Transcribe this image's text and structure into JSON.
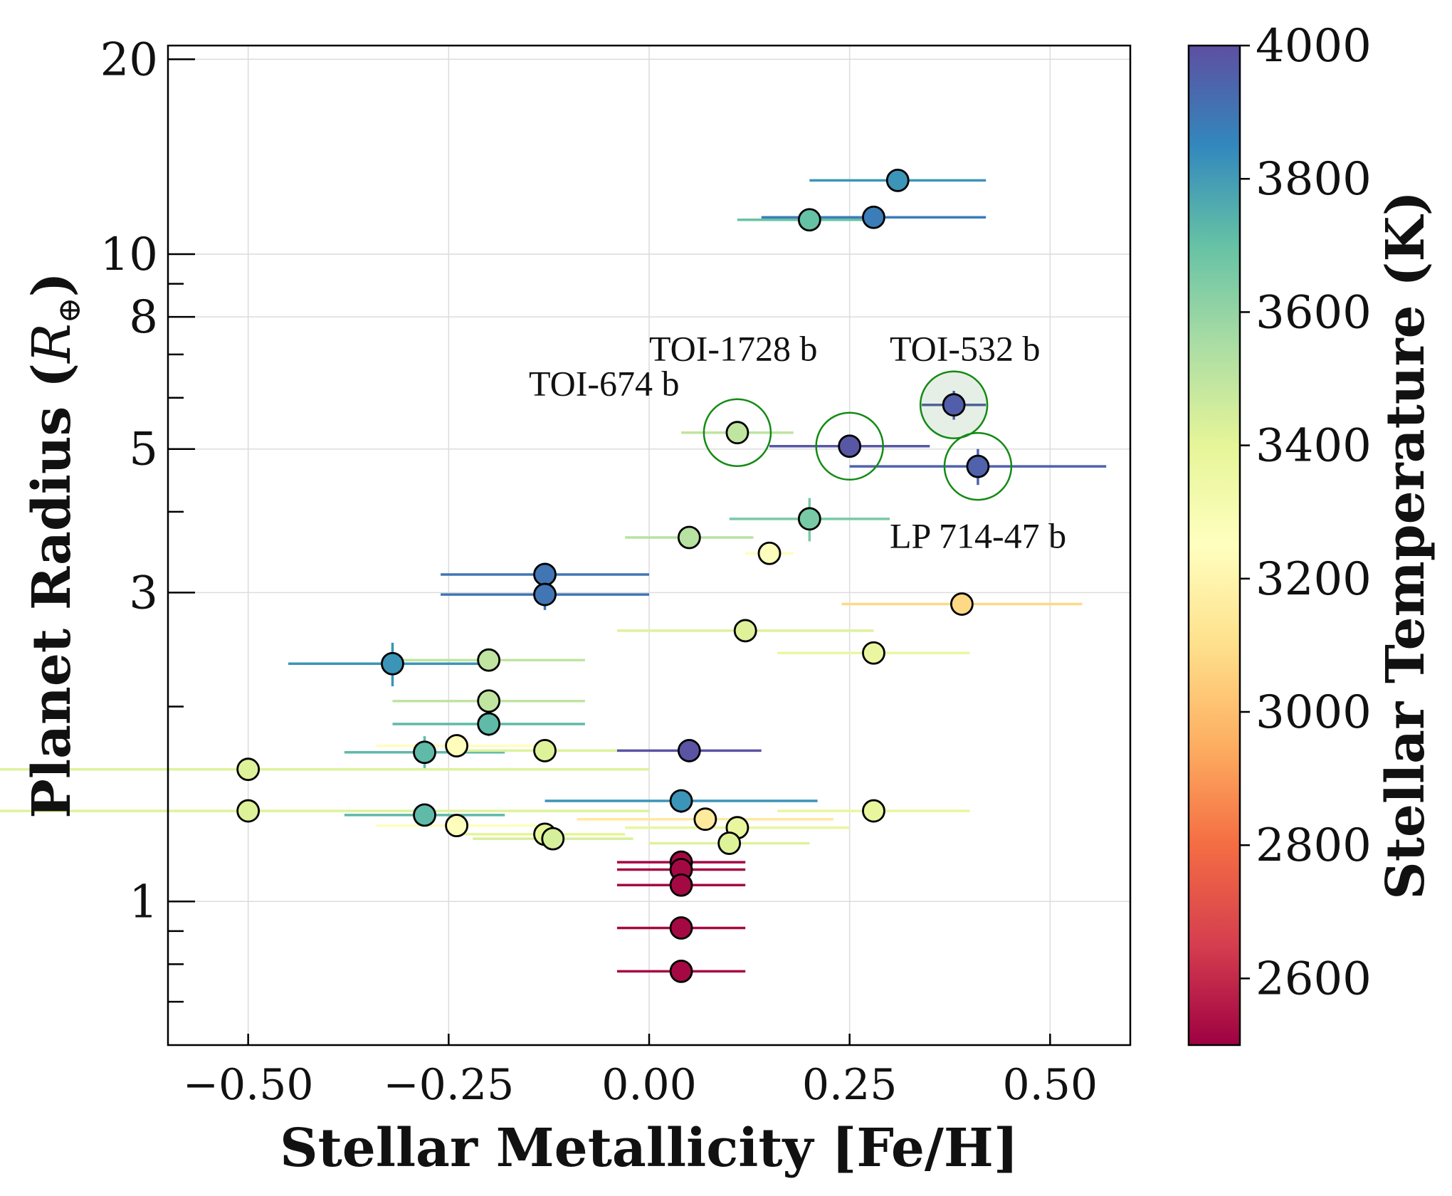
{
  "chart_data": {
    "type": "scatter",
    "title": "",
    "xlabel": "Stellar Metallicity [Fe/H]",
    "ylabel": "Planet Radius (R⊕)",
    "xlim": [
      -0.6,
      0.6
    ],
    "ylim": [
      0.6,
      21
    ],
    "yscale": "log",
    "grid": true,
    "x_ticks": [
      {
        "value": -0.5,
        "label": "−0.50"
      },
      {
        "value": -0.25,
        "label": "−0.25"
      },
      {
        "value": 0.0,
        "label": "0.00"
      },
      {
        "value": 0.25,
        "label": "0.25"
      },
      {
        "value": 0.5,
        "label": "0.50"
      }
    ],
    "y_ticks": [
      {
        "value": 1,
        "label": "1"
      },
      {
        "value": 3,
        "label": "3"
      },
      {
        "value": 5,
        "label": "5"
      },
      {
        "value": 8,
        "label": "8"
      },
      {
        "value": 10,
        "label": "10"
      },
      {
        "value": 20,
        "label": "20"
      }
    ],
    "y_minor_ticks": [
      0.7,
      0.8,
      0.9,
      2,
      4,
      6,
      7,
      9
    ],
    "colorbar": {
      "label": "Stellar Temperature (K)",
      "min": 2500,
      "max": 4000,
      "ticks": [
        {
          "value": 2600,
          "label": "2600"
        },
        {
          "value": 2800,
          "label": "2800"
        },
        {
          "value": 3000,
          "label": "3000"
        },
        {
          "value": 3200,
          "label": "3200"
        },
        {
          "value": 3400,
          "label": "3400"
        },
        {
          "value": 3600,
          "label": "3600"
        },
        {
          "value": 3800,
          "label": "3800"
        },
        {
          "value": 4000,
          "label": "4000"
        }
      ],
      "colormap": [
        "#9e0142",
        "#d53e4f",
        "#f46d43",
        "#fdae61",
        "#fee08b",
        "#ffffbf",
        "#e6f598",
        "#abdda4",
        "#66c2a5",
        "#3288bd",
        "#5e4fa2"
      ]
    },
    "points": [
      {
        "x": 0.31,
        "r": 13.0,
        "xerr": [
          0.11,
          0.11
        ],
        "rerr": 0,
        "teff": 3820
      },
      {
        "x": 0.2,
        "r": 11.3,
        "xerr": [
          0.09,
          0.09
        ],
        "rerr": 0,
        "teff": 3700
      },
      {
        "x": 0.28,
        "r": 11.4,
        "xerr": [
          0.14,
          0.14
        ],
        "rerr": 0,
        "teff": 3880
      },
      {
        "x": 0.11,
        "r": 5.3,
        "xerr": [
          0.07,
          0.07
        ],
        "rerr": 0,
        "teff": 3500
      },
      {
        "x": 0.25,
        "r": 5.05,
        "xerr": [
          0.1,
          0.1
        ],
        "rerr": 0,
        "teff": 3980
      },
      {
        "x": 0.38,
        "r": 5.85,
        "xerr": [
          0.04,
          0.04
        ],
        "rerr": 0.3,
        "teff": 3960
      },
      {
        "x": 0.41,
        "r": 4.7,
        "xerr": [
          0.16,
          0.16
        ],
        "rerr": 0.3,
        "teff": 3950
      },
      {
        "x": 0.05,
        "r": 3.65,
        "xerr": [
          0.08,
          0.08
        ],
        "rerr": 0,
        "teff": 3520
      },
      {
        "x": 0.2,
        "r": 3.9,
        "xerr": [
          0.1,
          0.1
        ],
        "rerr": 0.3,
        "teff": 3660
      },
      {
        "x": 0.15,
        "r": 3.45,
        "xerr": [
          0.03,
          0.03
        ],
        "rerr": 0,
        "teff": 3260
      },
      {
        "x": -0.13,
        "r": 3.2,
        "xerr": [
          0.13,
          0.13
        ],
        "rerr": 0,
        "teff": 3900
      },
      {
        "x": -0.13,
        "r": 2.98,
        "xerr": [
          0.13,
          0.13
        ],
        "rerr": 0.16,
        "teff": 3900
      },
      {
        "x": 0.39,
        "r": 2.88,
        "xerr": [
          0.15,
          0.15
        ],
        "rerr": 0.1,
        "teff": 3080
      },
      {
        "x": 0.12,
        "r": 2.62,
        "xerr": [
          0.16,
          0.16
        ],
        "rerr": 0,
        "teff": 3420
      },
      {
        "x": 0.28,
        "r": 2.42,
        "xerr": [
          0.12,
          0.12
        ],
        "rerr": 0,
        "teff": 3370
      },
      {
        "x": -0.32,
        "r": 2.33,
        "xerr": [
          0.13,
          0.13
        ],
        "rerr": 0.18,
        "teff": 3820
      },
      {
        "x": -0.2,
        "r": 2.36,
        "xerr": [
          0.12,
          0.12
        ],
        "rerr": 0,
        "teff": 3500
      },
      {
        "x": -0.2,
        "r": 2.04,
        "xerr": [
          0.12,
          0.12
        ],
        "rerr": 0,
        "teff": 3500
      },
      {
        "x": -0.2,
        "r": 1.88,
        "xerr": [
          0.12,
          0.12
        ],
        "rerr": 0.08,
        "teff": 3720
      },
      {
        "x": -0.28,
        "r": 1.7,
        "xerr": [
          0.1,
          0.1
        ],
        "rerr": 0.1,
        "teff": 3720
      },
      {
        "x": -0.24,
        "r": 1.74,
        "xerr": [
          0.1,
          0.1
        ],
        "rerr": 0,
        "teff": 3240
      },
      {
        "x": -0.13,
        "r": 1.71,
        "xerr": [
          0.1,
          0.1
        ],
        "rerr": 0,
        "teff": 3420
      },
      {
        "x": 0.05,
        "r": 1.71,
        "xerr": [
          0.09,
          0.09
        ],
        "rerr": 0,
        "teff": 3990
      },
      {
        "x": -0.5,
        "r": 1.6,
        "xerr": [
          0.5,
          0.5
        ],
        "rerr": 0.06,
        "teff": 3420
      },
      {
        "x": -0.5,
        "r": 1.38,
        "xerr": [
          0.5,
          0.5
        ],
        "rerr": 0,
        "teff": 3420
      },
      {
        "x": -0.28,
        "r": 1.36,
        "xerr": [
          0.1,
          0.1
        ],
        "rerr": 0.05,
        "teff": 3720
      },
      {
        "x": -0.24,
        "r": 1.31,
        "xerr": [
          0.1,
          0.1
        ],
        "rerr": 0,
        "teff": 3260
      },
      {
        "x": -0.13,
        "r": 1.27,
        "xerr": [
          0.1,
          0.1
        ],
        "rerr": 0,
        "teff": 3400
      },
      {
        "x": -0.12,
        "r": 1.25,
        "xerr": [
          0.1,
          0.1
        ],
        "rerr": 0,
        "teff": 3440
      },
      {
        "x": 0.04,
        "r": 1.43,
        "xerr": [
          0.17,
          0.17
        ],
        "rerr": 0.06,
        "teff": 3820
      },
      {
        "x": 0.07,
        "r": 1.34,
        "xerr": [
          0.16,
          0.16
        ],
        "rerr": 0,
        "teff": 3150
      },
      {
        "x": 0.11,
        "r": 1.3,
        "xerr": [
          0.14,
          0.14
        ],
        "rerr": 0,
        "teff": 3380
      },
      {
        "x": 0.1,
        "r": 1.23,
        "xerr": [
          0.1,
          0.1
        ],
        "rerr": 0.05,
        "teff": 3420
      },
      {
        "x": 0.28,
        "r": 1.38,
        "xerr": [
          0.12,
          0.12
        ],
        "rerr": 0,
        "teff": 3380
      },
      {
        "x": 0.04,
        "r": 1.15,
        "xerr": [
          0.08,
          0.08
        ],
        "rerr": 0,
        "teff": 2520
      },
      {
        "x": 0.04,
        "r": 1.12,
        "xerr": [
          0.08,
          0.08
        ],
        "rerr": 0,
        "teff": 2520
      },
      {
        "x": 0.04,
        "r": 1.06,
        "xerr": [
          0.08,
          0.08
        ],
        "rerr": 0,
        "teff": 2520
      },
      {
        "x": 0.04,
        "r": 0.91,
        "xerr": [
          0.08,
          0.08
        ],
        "rerr": 0,
        "teff": 2520
      },
      {
        "x": 0.04,
        "r": 0.78,
        "xerr": [
          0.08,
          0.08
        ],
        "rerr": 0,
        "teff": 2520
      }
    ],
    "highlighted": [
      {
        "x": 0.11,
        "r": 5.3,
        "fill": "none"
      },
      {
        "x": 0.25,
        "r": 5.05,
        "fill": "none"
      },
      {
        "x": 0.38,
        "r": 5.85,
        "fill": "#2e7d32"
      },
      {
        "x": 0.41,
        "r": 4.7,
        "fill": "none"
      }
    ],
    "annotations": [
      {
        "text": "TOI-1728 b",
        "x": 0.0,
        "r": 6.85
      },
      {
        "text": "TOI-532 b",
        "x": 0.3,
        "r": 6.85
      },
      {
        "text": "TOI-674 b",
        "x": -0.15,
        "r": 6.05
      },
      {
        "text": "LP 714-47 b",
        "x": 0.3,
        "r": 3.52
      }
    ]
  }
}
